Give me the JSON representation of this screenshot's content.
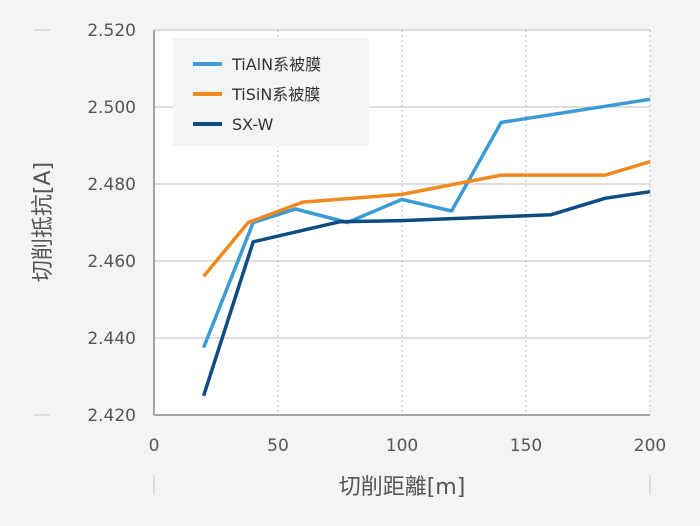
{
  "chart_data": {
    "type": "line",
    "xlabel": "切削距離[m]",
    "ylabel": "切削抵抗[A]",
    "xlim": [
      0,
      200
    ],
    "ylim": [
      2.42,
      2.52
    ],
    "x_ticks": [
      "0",
      "50",
      "100",
      "150",
      "200"
    ],
    "y_ticks": [
      "2.420",
      "2.440",
      "2.460",
      "2.480",
      "2.500",
      "2.520"
    ],
    "grid": "vertical dotted",
    "legend_position": "top-left",
    "series": [
      {
        "name": "TiAlN系被膜",
        "color": "#3a9bd5",
        "points": [
          [
            20,
            2.4375
          ],
          [
            40,
            2.47
          ],
          [
            57,
            2.4735
          ],
          [
            78,
            2.47
          ],
          [
            100,
            2.476
          ],
          [
            120,
            2.473
          ],
          [
            140,
            2.496
          ],
          [
            200,
            2.502
          ]
        ]
      },
      {
        "name": "TiSiN系被膜",
        "color": "#f08a1e",
        "points": [
          [
            20,
            2.456
          ],
          [
            38,
            2.47
          ],
          [
            60,
            2.4753
          ],
          [
            100,
            2.4773
          ],
          [
            140,
            2.4823
          ],
          [
            182,
            2.4823
          ],
          [
            200,
            2.4858
          ]
        ]
      },
      {
        "name": "SX-W",
        "color": "#0f4c81",
        "points": [
          [
            20,
            2.425
          ],
          [
            40,
            2.465
          ],
          [
            75,
            2.4702
          ],
          [
            100,
            2.4705
          ],
          [
            160,
            2.472
          ],
          [
            182,
            2.4763
          ],
          [
            200,
            2.478
          ]
        ]
      }
    ]
  }
}
